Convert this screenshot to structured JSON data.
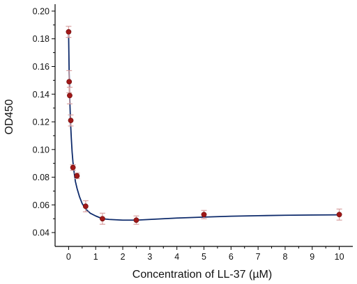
{
  "chart_data": {
    "type": "scatter",
    "xlabel": "Concentration of LL-37 (µM)",
    "ylabel": "OD450",
    "xlim": [
      -0.5,
      10.5
    ],
    "ylim": [
      0.03,
      0.205
    ],
    "x_ticks": [
      0,
      1,
      2,
      3,
      4,
      5,
      6,
      7,
      8,
      9,
      10
    ],
    "x_tick_labels": [
      "0",
      "1",
      "2",
      "3",
      "4",
      "5",
      "6",
      "7",
      "8",
      "9",
      "10"
    ],
    "y_ticks": [
      0.04,
      0.06,
      0.08,
      0.1,
      0.12,
      0.14,
      0.16,
      0.18,
      0.2
    ],
    "y_tick_labels": [
      "0.04",
      "0.06",
      "0.08",
      "0.10",
      "0.12",
      "0.14",
      "0.16",
      "0.18",
      "0.20"
    ],
    "grid": false,
    "legend": "none",
    "series": [
      {
        "x": [
          0,
          0.02,
          0.04,
          0.08,
          0.16,
          0.31,
          0.63,
          1.25,
          2.5,
          5,
          10
        ],
        "y": [
          0.185,
          0.149,
          0.139,
          0.121,
          0.087,
          0.081,
          0.059,
          0.05,
          0.049,
          0.053,
          0.053
        ],
        "error": [
          0.004,
          0.008,
          0.006,
          0.004,
          0.002,
          0.002,
          0.004,
          0.004,
          0.003,
          0.003,
          0.004
        ],
        "marker_color": "#a01818",
        "error_color": "#d9a0a0"
      }
    ],
    "fit_curve": {
      "color": "#0d2a6b",
      "x": [
        0,
        0.02,
        0.04,
        0.06,
        0.08,
        0.1,
        0.13,
        0.16,
        0.2,
        0.25,
        0.31,
        0.4,
        0.5,
        0.63,
        0.8,
        1.0,
        1.25,
        1.5,
        2.0,
        2.5,
        3.0,
        4.0,
        5.0,
        6.0,
        7.0,
        8.0,
        9.0,
        10.0
      ],
      "y": [
        0.183,
        0.155,
        0.138,
        0.126,
        0.116,
        0.108,
        0.098,
        0.091,
        0.084,
        0.077,
        0.072,
        0.066,
        0.061,
        0.057,
        0.054,
        0.052,
        0.05,
        0.0495,
        0.049,
        0.049,
        0.0495,
        0.0505,
        0.0512,
        0.0518,
        0.0522,
        0.0525,
        0.0527,
        0.0528
      ]
    }
  }
}
